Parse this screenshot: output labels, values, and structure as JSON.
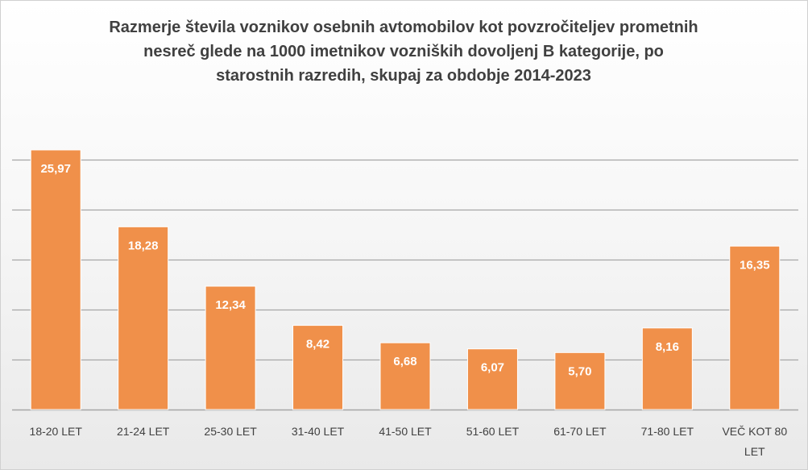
{
  "chart_data": {
    "type": "bar",
    "title": "Razmerje števila voznikov osebnih avtomobilov kot povzročiteljev prometnih nesreč glede na 1000 imetnikov vozniških dovoljenj B kategorije, po starostnih razredih, skupaj za obdobje 2014-2023",
    "title_lines": [
      "Razmerje števila voznikov osebnih avtomobilov kot povzročiteljev prometnih",
      "nesreč glede na 1000 imetnikov vozniških dovoljenj B kategorije, po",
      "starostnih razredih, skupaj za obdobje 2014-2023"
    ],
    "categories": [
      [
        "18-20 LET"
      ],
      [
        "21-24 LET"
      ],
      [
        "25-30 LET"
      ],
      [
        "31-40 LET"
      ],
      [
        "41-50 LET"
      ],
      [
        "51-60 LET"
      ],
      [
        "61-70 LET"
      ],
      [
        "71-80 LET"
      ],
      [
        "VEČ KOT 80",
        "LET"
      ]
    ],
    "values": [
      25.97,
      18.28,
      12.34,
      8.42,
      6.68,
      6.07,
      5.7,
      8.16,
      16.35
    ],
    "value_labels": [
      "25,97",
      "18,28",
      "12,34",
      "8,42",
      "6,68",
      "6,07",
      "5,70",
      "8,16",
      "16,35"
    ],
    "ylim": [
      0,
      30
    ],
    "y_gridlines": [
      5,
      10,
      15,
      20,
      25
    ],
    "y_tick_labels_shown": false,
    "grid": true,
    "legend": "none",
    "colors": {
      "bar": "#F0904A",
      "bar_stroke": "#ffffff",
      "grid": "#a6a6a6",
      "title": "#404040",
      "axis_text": "#404040",
      "data_label": "#ffffff"
    }
  }
}
